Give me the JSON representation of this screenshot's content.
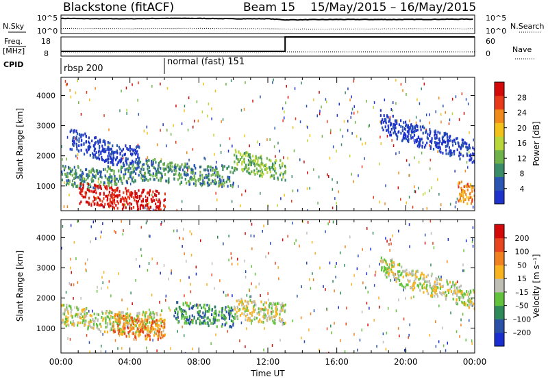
{
  "header": {
    "radar": "Blackstone (fitACF)",
    "beam": "Beam 15",
    "date_range": "15/May/2015 – 16/May/2015"
  },
  "chart_data": [
    {
      "id": "nsky-nsearch",
      "type": "line",
      "left_label": "N.Sky",
      "right_label": "N.Search",
      "left_ticks": [
        "10^5",
        "10^0"
      ],
      "right_ticks": [
        "10^5",
        "10^0"
      ],
      "series": [
        {
          "name": "N.Sky",
          "style": "solid",
          "x": [
            0,
            2,
            4,
            6,
            8,
            10,
            12,
            13,
            16,
            20,
            24
          ],
          "y": [
            4.1,
            4.0,
            4.0,
            4.1,
            4.1,
            4.0,
            4.0,
            3.7,
            3.8,
            3.8,
            3.9
          ]
        },
        {
          "name": "N.Search",
          "style": "dotted",
          "x": [
            0,
            4,
            8,
            12,
            13,
            16,
            20,
            24
          ],
          "y": [
            1.4,
            1.3,
            1.4,
            1.3,
            1.2,
            1.2,
            1.3,
            1.3
          ]
        }
      ]
    },
    {
      "id": "freq-nave",
      "type": "line",
      "left_label": "Freq. [MHz]",
      "right_label": "Nave",
      "left_ticks": [
        "18",
        "8"
      ],
      "right_ticks": [
        "60",
        "0"
      ],
      "series": [
        {
          "name": "Freq",
          "style": "solid",
          "x": [
            0,
            13,
            13,
            24
          ],
          "y": [
            10.5,
            10.5,
            18,
            18
          ]
        },
        {
          "name": "Nave",
          "style": "dotted",
          "x": [
            0,
            24
          ],
          "y": [
            13,
            13
          ]
        }
      ]
    },
    {
      "id": "cpid",
      "type": "table",
      "label": "CPID",
      "segments": [
        {
          "start": 0,
          "name": "rbsp 200"
        },
        {
          "start": 6,
          "name": "normal (fast) 151"
        }
      ]
    },
    {
      "id": "power",
      "type": "heatmap",
      "ylabel": "Slant Range [km]",
      "xlim": [
        0,
        24
      ],
      "ylim": [
        180,
        4600
      ],
      "yticks": [
        1000,
        2000,
        3000,
        4000
      ],
      "colorbar": {
        "label": "Power [dB]",
        "ticks": [
          "28",
          "24",
          "20",
          "16",
          "12",
          "8",
          "4"
        ],
        "colors": [
          "#1f33cc",
          "#2a55b0",
          "#3a8c68",
          "#6fb24a",
          "#b9d63a",
          "#f2c21a",
          "#f08a1a",
          "#e83a1a",
          "#d40a0a"
        ]
      },
      "features": [
        {
          "desc": "dense band",
          "x": [
            0,
            2,
            4,
            5.5,
            6,
            8,
            10
          ],
          "y": [
            1400,
            1300,
            1500,
            1600,
            1500,
            1400,
            1350
          ],
          "level": 2
        },
        {
          "desc": "strong near range",
          "x": [
            1,
            3,
            5,
            6
          ],
          "y": [
            800,
            650,
            550,
            500
          ],
          "level": 8
        },
        {
          "desc": "upper patchy band",
          "x": [
            0.5,
            3,
            4.5
          ],
          "y": [
            2600,
            2100,
            2000
          ],
          "level": 0
        },
        {
          "desc": "post-noon band",
          "x": [
            10,
            11.5,
            13
          ],
          "y": [
            1900,
            1700,
            1500
          ],
          "level": 3
        },
        {
          "desc": "evening arc",
          "x": [
            18.5,
            20,
            22,
            24
          ],
          "y": [
            3200,
            2800,
            2500,
            2100
          ],
          "level": 0
        },
        {
          "desc": "late near range",
          "x": [
            23,
            24
          ],
          "y": [
            900,
            700
          ],
          "level": 6
        }
      ]
    },
    {
      "id": "velocity",
      "type": "heatmap",
      "ylabel": "Slant Range [km]",
      "xlabel": "Time UT",
      "xlim": [
        0,
        24
      ],
      "ylim": [
        180,
        4600
      ],
      "yticks": [
        1000,
        2000,
        3000,
        4000
      ],
      "xticks": [
        "00:00",
        "04:00",
        "08:00",
        "12:00",
        "16:00",
        "20:00",
        "00:00"
      ],
      "colorbar": {
        "label": "Velocity [m s⁻¹]",
        "ticks": [
          "200",
          "100",
          "50",
          "15",
          "–15",
          "–50",
          "–100",
          "–200"
        ],
        "colors": [
          "#1a2dd0",
          "#2a50a8",
          "#2f8a5a",
          "#62c23c",
          "#bfbfb6",
          "#f8b31e",
          "#f08020",
          "#e8451e",
          "#d40a0a"
        ]
      },
      "features": [
        {
          "desc": "grey ground scatter",
          "x": [
            0,
            2,
            4,
            6
          ],
          "y": [
            1500,
            1300,
            1200,
            1300
          ],
          "level": 4
        },
        {
          "desc": "orange patch",
          "x": [
            3,
            5,
            6
          ],
          "y": [
            1200,
            1000,
            1000
          ],
          "level": 6
        },
        {
          "desc": "mixed flow",
          "x": [
            6.5,
            8,
            10
          ],
          "y": [
            1600,
            1500,
            1400
          ],
          "level": 2
        },
        {
          "desc": "post-noon scatter",
          "x": [
            10,
            13
          ],
          "y": [
            1700,
            1500
          ],
          "level": 4
        },
        {
          "desc": "evening scatter",
          "x": [
            18.5,
            20,
            24
          ],
          "y": [
            3200,
            2700,
            2000
          ],
          "level": 4
        }
      ]
    }
  ]
}
